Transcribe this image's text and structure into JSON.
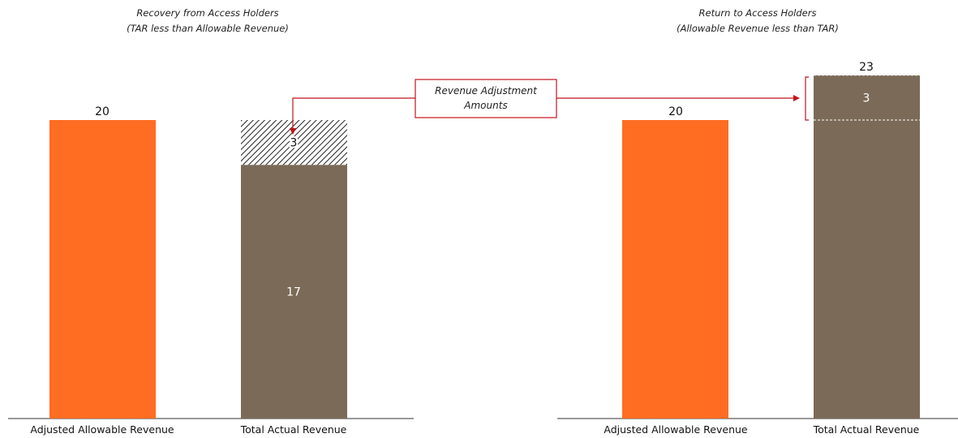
{
  "colors": {
    "allowable": "#ff6d22",
    "actual": "#7b6a57",
    "axis": "#333333",
    "callout": "#c0141c"
  },
  "callout": {
    "line1": "Revenue Adjustment",
    "line2": "Amounts"
  },
  "chart_data": [
    {
      "type": "bar",
      "title": "Recovery from Access Holders",
      "subtitle": "(TAR less than Allowable Revenue)",
      "categories": [
        "Adjusted Allowable Revenue",
        "Total Actual Revenue"
      ],
      "ylim": [
        0,
        23
      ],
      "bars": [
        {
          "category": "Adjusted Allowable Revenue",
          "color_key": "allowable",
          "segments": [
            {
              "value": 20,
              "pattern": "solid"
            }
          ],
          "top_label": "20"
        },
        {
          "category": "Total Actual Revenue",
          "color_key": "actual",
          "segments": [
            {
              "value": 17,
              "pattern": "solid",
              "label": "17"
            },
            {
              "value": 3,
              "pattern": "hatch",
              "label": "3"
            }
          ],
          "top_label": ""
        }
      ]
    },
    {
      "type": "bar",
      "title": "Return to Access Holders",
      "subtitle": "(Allowable Revenue less than TAR)",
      "categories": [
        "Adjusted Allowable Revenue",
        "Total Actual Revenue"
      ],
      "ylim": [
        0,
        23
      ],
      "bars": [
        {
          "category": "Adjusted Allowable Revenue",
          "color_key": "allowable",
          "segments": [
            {
              "value": 20,
              "pattern": "solid"
            }
          ],
          "top_label": "20"
        },
        {
          "category": "Total Actual Revenue",
          "color_key": "actual",
          "segments": [
            {
              "value": 20,
              "pattern": "solid"
            },
            {
              "value": 3,
              "pattern": "solid-dashed-top",
              "label": "3"
            }
          ],
          "top_label": "23"
        }
      ]
    }
  ]
}
